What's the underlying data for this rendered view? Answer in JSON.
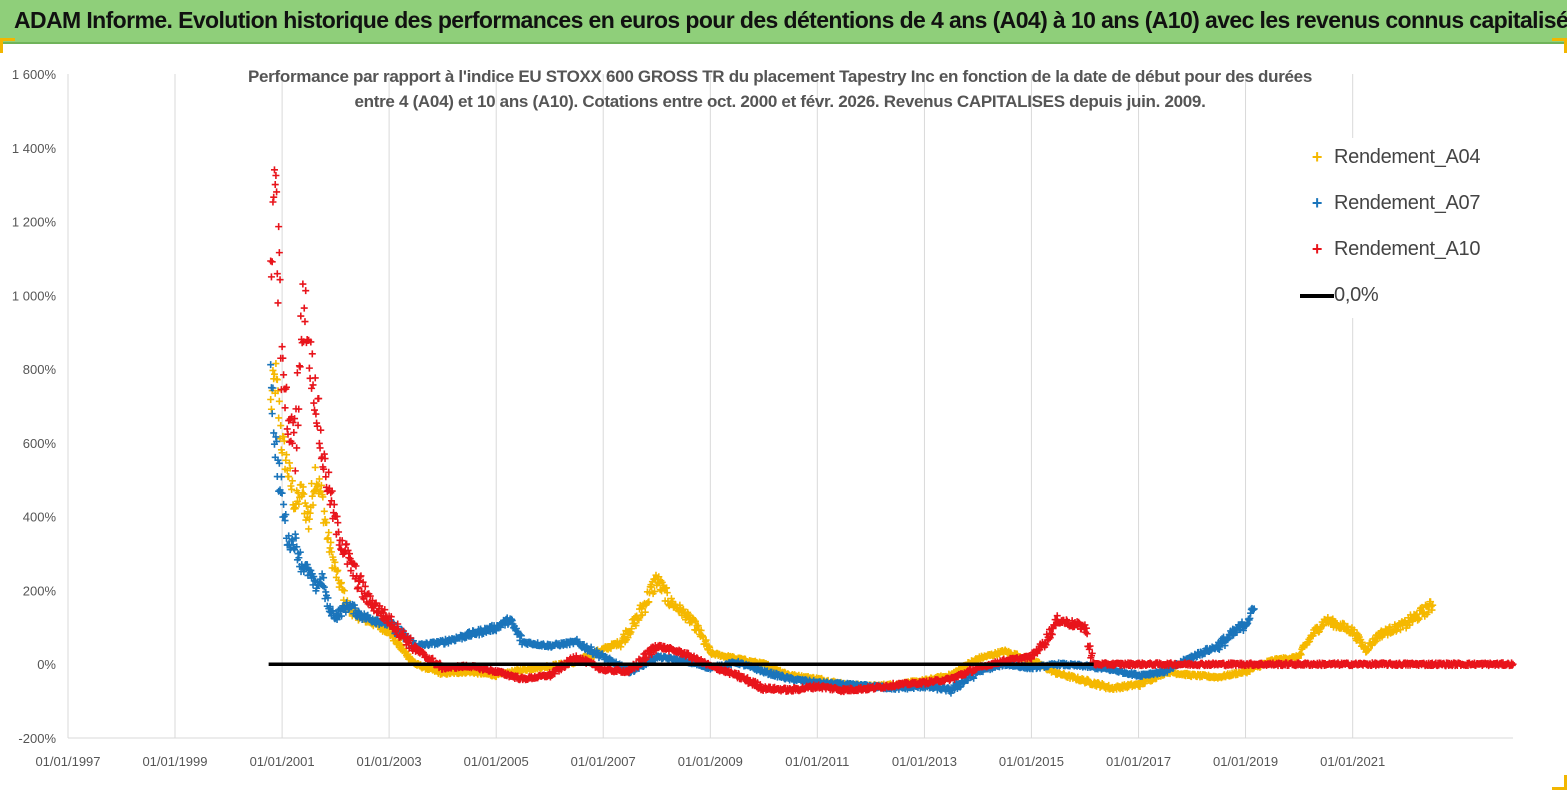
{
  "header": {
    "title": "ADAM Informe. Evolution historique des performances en euros pour des détentions de 4 ans (A04) à 10 ans (A10) avec les revenus connus capitalisés"
  },
  "chart_data": {
    "type": "scatter",
    "title_lines": [
      "Performance par rapport à l'indice EU STOXX 600 GROSS TR  du placement Tapestry Inc en fonction de la date de début pour des durées",
      "entre 4 (A04) et 10 ans (A10).  Cotations entre oct. 2000 et févr. 2026. Revenus CAPITALISES depuis juin. 2009."
    ],
    "xlabel": "",
    "ylabel": "",
    "x_range": [
      "1997-01-01",
      "2023-12-31"
    ],
    "ylim": [
      -200,
      1600
    ],
    "y_ticks": [
      -200,
      0,
      200,
      400,
      600,
      800,
      1000,
      1200,
      1400,
      1600
    ],
    "y_tick_labels": [
      "-200%",
      "0%",
      "200%",
      "400%",
      "600%",
      "800%",
      "1 000%",
      "1 200%",
      "1 400%",
      "1 600%"
    ],
    "x_ticks": [
      "1997-01-01",
      "1999-01-01",
      "2001-01-01",
      "2003-01-01",
      "2005-01-01",
      "2007-01-01",
      "2009-01-01",
      "2011-01-01",
      "2013-01-01",
      "2015-01-01",
      "2017-01-01",
      "2019-01-01",
      "2021-01-01"
    ],
    "x_tick_labels": [
      "01/01/1997",
      "01/01/1999",
      "01/01/2001",
      "01/01/2003",
      "01/01/2005",
      "01/01/2007",
      "01/01/2009",
      "01/01/2011",
      "01/01/2013",
      "01/01/2015",
      "01/01/2017",
      "01/01/2019",
      "01/01/2021"
    ],
    "grid": "vertical",
    "legend": "top-right",
    "series": [
      {
        "name": "Rendement_A04",
        "color": "#f5b800",
        "marker": "+",
        "points": [
          [
            "2000-10-15",
            700
          ],
          [
            "2000-11-15",
            780
          ],
          [
            "2001-01-01",
            600
          ],
          [
            "2001-02-15",
            520
          ],
          [
            "2001-04-01",
            430
          ],
          [
            "2001-05-15",
            470
          ],
          [
            "2001-07-01",
            390
          ],
          [
            "2001-08-15",
            520
          ],
          [
            "2001-10-01",
            450
          ],
          [
            "2001-11-15",
            330
          ],
          [
            "2002-01-01",
            250
          ],
          [
            "2002-02-15",
            200
          ],
          [
            "2002-04-01",
            150
          ],
          [
            "2002-06-01",
            130
          ],
          [
            "2002-09-01",
            115
          ],
          [
            "2003-01-01",
            90
          ],
          [
            "2003-04-01",
            40
          ],
          [
            "2003-07-01",
            0
          ],
          [
            "2004-01-01",
            -25
          ],
          [
            "2004-07-01",
            -20
          ],
          [
            "2005-01-01",
            -30
          ],
          [
            "2005-07-01",
            -15
          ],
          [
            "2006-01-01",
            -5
          ],
          [
            "2006-07-01",
            5
          ],
          [
            "2007-01-01",
            40
          ],
          [
            "2007-05-01",
            60
          ],
          [
            "2007-09-01",
            130
          ],
          [
            "2008-01-01",
            230
          ],
          [
            "2008-04-01",
            170
          ],
          [
            "2008-07-01",
            140
          ],
          [
            "2008-10-01",
            100
          ],
          [
            "2009-01-01",
            30
          ],
          [
            "2009-07-01",
            15
          ],
          [
            "2010-01-01",
            0
          ],
          [
            "2010-07-01",
            -30
          ],
          [
            "2011-01-01",
            -40
          ],
          [
            "2011-07-01",
            -55
          ],
          [
            "2012-01-01",
            -60
          ],
          [
            "2012-07-01",
            -55
          ],
          [
            "2013-01-01",
            -45
          ],
          [
            "2013-07-01",
            -30
          ],
          [
            "2014-01-01",
            15
          ],
          [
            "2014-07-01",
            35
          ],
          [
            "2015-01-01",
            10
          ],
          [
            "2015-07-01",
            -25
          ],
          [
            "2016-01-01",
            -45
          ],
          [
            "2016-07-01",
            -65
          ],
          [
            "2017-01-01",
            -55
          ],
          [
            "2017-07-01",
            -20
          ],
          [
            "2018-01-01",
            -30
          ],
          [
            "2018-07-01",
            -35
          ],
          [
            "2019-01-01",
            -20
          ],
          [
            "2019-07-01",
            10
          ],
          [
            "2020-01-01",
            20
          ],
          [
            "2020-04-01",
            80
          ],
          [
            "2020-07-01",
            120
          ],
          [
            "2021-01-01",
            90
          ],
          [
            "2021-04-01",
            40
          ],
          [
            "2021-07-01",
            80
          ],
          [
            "2022-01-01",
            110
          ],
          [
            "2022-07-01",
            160
          ]
        ]
      },
      {
        "name": "Rendement_A07",
        "color": "#1b75bb",
        "marker": "+",
        "points": [
          [
            "2000-10-15",
            820
          ],
          [
            "2000-11-15",
            600
          ],
          [
            "2001-01-01",
            440
          ],
          [
            "2001-02-15",
            330
          ],
          [
            "2001-04-01",
            330
          ],
          [
            "2001-05-15",
            270
          ],
          [
            "2001-07-01",
            250
          ],
          [
            "2001-08-15",
            210
          ],
          [
            "2001-10-01",
            230
          ],
          [
            "2001-11-15",
            150
          ],
          [
            "2002-01-01",
            130
          ],
          [
            "2002-04-01",
            160
          ],
          [
            "2002-07-01",
            130
          ],
          [
            "2003-01-01",
            110
          ],
          [
            "2003-07-01",
            50
          ],
          [
            "2004-01-01",
            60
          ],
          [
            "2004-07-01",
            80
          ],
          [
            "2005-01-01",
            100
          ],
          [
            "2005-04-01",
            120
          ],
          [
            "2005-07-01",
            60
          ],
          [
            "2006-01-01",
            50
          ],
          [
            "2006-07-01",
            60
          ],
          [
            "2007-01-01",
            20
          ],
          [
            "2007-07-01",
            -20
          ],
          [
            "2008-01-01",
            20
          ],
          [
            "2008-07-01",
            10
          ],
          [
            "2009-01-01",
            -10
          ],
          [
            "2009-07-01",
            5
          ],
          [
            "2010-01-01",
            -20
          ],
          [
            "2010-07-01",
            -40
          ],
          [
            "2011-01-01",
            -50
          ],
          [
            "2011-07-01",
            -55
          ],
          [
            "2012-01-01",
            -60
          ],
          [
            "2012-07-01",
            -65
          ],
          [
            "2013-01-01",
            -60
          ],
          [
            "2013-07-01",
            -70
          ],
          [
            "2014-01-01",
            -20
          ],
          [
            "2014-07-01",
            0
          ],
          [
            "2015-01-01",
            -10
          ],
          [
            "2015-07-01",
            0
          ],
          [
            "2016-01-01",
            -5
          ],
          [
            "2016-07-01",
            -15
          ],
          [
            "2017-01-01",
            -30
          ],
          [
            "2017-07-01",
            -20
          ],
          [
            "2018-01-01",
            20
          ],
          [
            "2018-07-01",
            50
          ],
          [
            "2019-01-01",
            110
          ],
          [
            "2019-03-01",
            150
          ]
        ]
      },
      {
        "name": "Rendement_A10",
        "color": "#e8141b",
        "marker": "+",
        "points": [
          [
            "2000-10-15",
            1100
          ],
          [
            "2000-11-15",
            1330
          ],
          [
            "2001-01-01",
            800
          ],
          [
            "2001-02-15",
            640
          ],
          [
            "2001-04-01",
            630
          ],
          [
            "2001-06-01",
            1000
          ],
          [
            "2001-07-01",
            860
          ],
          [
            "2001-08-15",
            740
          ],
          [
            "2001-10-01",
            570
          ],
          [
            "2001-11-15",
            480
          ],
          [
            "2002-01-01",
            380
          ],
          [
            "2002-04-01",
            280
          ],
          [
            "2002-08-01",
            180
          ],
          [
            "2003-01-01",
            120
          ],
          [
            "2003-07-01",
            40
          ],
          [
            "2004-01-01",
            -10
          ],
          [
            "2004-07-01",
            -5
          ],
          [
            "2005-01-01",
            -20
          ],
          [
            "2005-07-01",
            -40
          ],
          [
            "2006-01-01",
            -30
          ],
          [
            "2006-07-01",
            20
          ],
          [
            "2007-01-01",
            -15
          ],
          [
            "2007-07-01",
            -20
          ],
          [
            "2008-01-01",
            50
          ],
          [
            "2008-07-01",
            30
          ],
          [
            "2009-01-01",
            -5
          ],
          [
            "2009-07-01",
            -30
          ],
          [
            "2010-01-01",
            -65
          ],
          [
            "2010-07-01",
            -70
          ],
          [
            "2011-01-01",
            -60
          ],
          [
            "2011-07-01",
            -70
          ],
          [
            "2012-01-01",
            -65
          ],
          [
            "2012-07-01",
            -55
          ],
          [
            "2013-01-01",
            -50
          ],
          [
            "2013-07-01",
            -40
          ],
          [
            "2014-01-01",
            -10
          ],
          [
            "2014-07-01",
            10
          ],
          [
            "2015-01-01",
            20
          ],
          [
            "2015-04-01",
            60
          ],
          [
            "2015-07-01",
            120
          ],
          [
            "2016-01-01",
            100
          ],
          [
            "2016-03-01",
            0
          ],
          [
            "2023-12-31",
            0
          ]
        ]
      },
      {
        "name": "0,0%",
        "color": "#000000",
        "marker": "line",
        "points": [
          [
            "2000-10-01",
            0
          ],
          [
            "2016-03-01",
            0
          ]
        ]
      }
    ]
  }
}
